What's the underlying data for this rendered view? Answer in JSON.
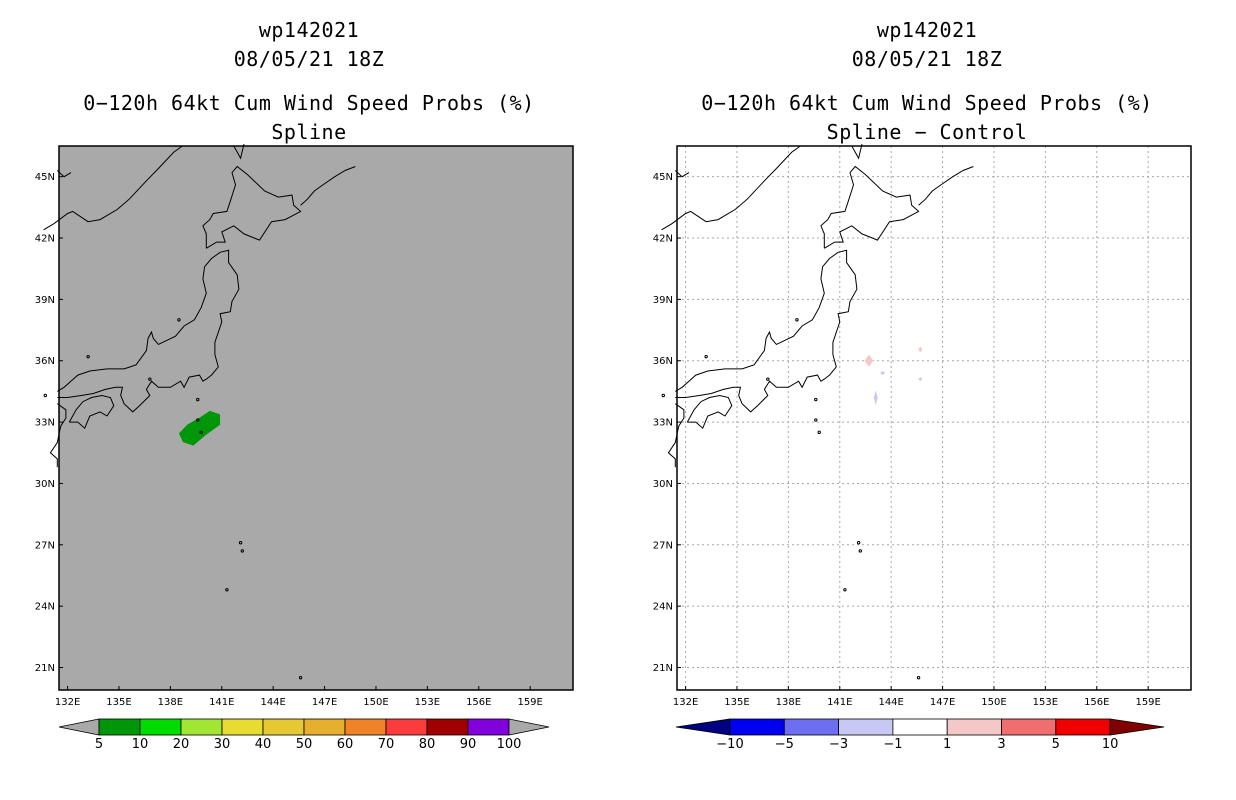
{
  "chart_data": [
    {
      "type": "heatmap",
      "title_lines": [
        "wp142021",
        "08/05/21 18Z",
        "0−120h 64kt Cum Wind Speed Probs (%)",
        "Spline"
      ],
      "xlabel": "",
      "ylabel": "",
      "xlim": [
        131.5,
        161.5
      ],
      "ylim": [
        19.9,
        46.5
      ],
      "x_ticks": [
        132,
        135,
        138,
        141,
        144,
        147,
        150,
        153,
        156,
        159
      ],
      "x_tick_labels": [
        "132E",
        "135E",
        "138E",
        "141E",
        "144E",
        "147E",
        "150E",
        "153E",
        "156E",
        "159E"
      ],
      "y_ticks": [
        21,
        24,
        27,
        30,
        33,
        36,
        39,
        42,
        45
      ],
      "y_tick_labels": [
        "21N",
        "24N",
        "27N",
        "30N",
        "33N",
        "36N",
        "39N",
        "42N",
        "45N"
      ],
      "grid": false,
      "background_color": "#a9a9a9",
      "field": [
        {
          "category": "5-10",
          "color": "#00960a",
          "lon_range": [
            138.6,
            141.0
          ],
          "lat_range": [
            31.8,
            33.5
          ],
          "center": [
            139.7,
            32.7
          ]
        }
      ],
      "colorbar": {
        "levels": [
          "5",
          "10",
          "20",
          "30",
          "40",
          "50",
          "60",
          "70",
          "80",
          "90",
          "100"
        ],
        "colors": [
          "#a9a9a9",
          "#00960a",
          "#00dc00",
          "#a0e632",
          "#e6dc32",
          "#e6c832",
          "#e6af2d",
          "#f08228",
          "#fa3c3c",
          "#a00000",
          "#8200dc",
          "#a9a9a9"
        ]
      }
    },
    {
      "type": "heatmap",
      "title_lines": [
        "wp142021",
        "08/05/21 18Z",
        "0−120h 64kt Cum Wind Speed Probs (%)",
        "Spline − Control"
      ],
      "xlabel": "",
      "ylabel": "",
      "xlim": [
        131.5,
        161.5
      ],
      "ylim": [
        19.9,
        46.5
      ],
      "x_ticks": [
        132,
        135,
        138,
        141,
        144,
        147,
        150,
        153,
        156,
        159
      ],
      "x_tick_labels": [
        "132E",
        "135E",
        "138E",
        "141E",
        "144E",
        "147E",
        "150E",
        "153E",
        "156E",
        "159E"
      ],
      "y_ticks": [
        21,
        24,
        27,
        30,
        33,
        36,
        39,
        42,
        45
      ],
      "y_tick_labels": [
        "21N",
        "24N",
        "27N",
        "30N",
        "33N",
        "36N",
        "39N",
        "42N",
        "45N"
      ],
      "grid": true,
      "background_color": "#ffffff",
      "field": [
        {
          "category": "1-3",
          "color": "#f5c8c8",
          "lon_range": [
            142.5,
            143.0
          ],
          "lat_range": [
            35.7,
            36.3
          ],
          "center": [
            142.7,
            36.0
          ]
        },
        {
          "category": "-3--1",
          "color": "#c8c8f5",
          "lon_range": [
            143.0,
            143.2
          ],
          "lat_range": [
            33.9,
            34.6
          ],
          "center": [
            143.1,
            34.2
          ]
        },
        {
          "category": "-3--1",
          "color": "#c8c8f5",
          "lon_range": [
            143.3,
            143.6
          ],
          "lat_range": [
            35.3,
            35.5
          ],
          "center": [
            143.5,
            35.4
          ]
        },
        {
          "category": "1-3",
          "color": "#f5c8c8",
          "lon_range": [
            145.6,
            145.8
          ],
          "lat_range": [
            36.4,
            36.7
          ],
          "center": [
            145.7,
            36.55
          ]
        },
        {
          "category": "-3--1",
          "color": "#c8c8f5",
          "lon_range": [
            145.6,
            145.8
          ],
          "lat_range": [
            35.0,
            35.2
          ],
          "center": [
            145.7,
            35.1
          ]
        }
      ],
      "colorbar": {
        "levels": [
          "−10",
          "−5",
          "−3",
          "−1",
          "1",
          "3",
          "5",
          "10"
        ],
        "colors": [
          "#000080",
          "#0000f0",
          "#6e6ef0",
          "#c8c8f5",
          "#ffffff",
          "#f5c8c8",
          "#f06e6e",
          "#f00000",
          "#800000"
        ]
      }
    }
  ]
}
